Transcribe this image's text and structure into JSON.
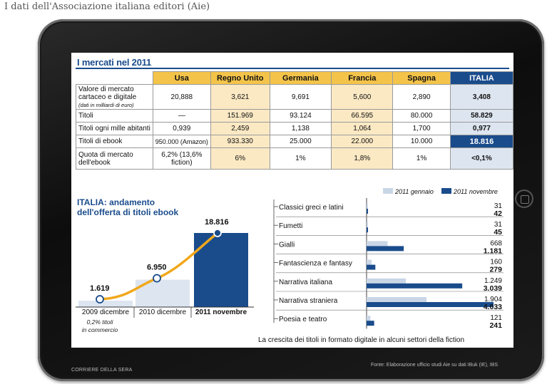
{
  "caption": "I dati dell'Associazione italiana editori (Aie)",
  "footer_left": "CORRIERE DELLA SERA",
  "footer_right": "Fonte: Elaborazione ufficio studi Aie su dati IBuk (IE), IBS",
  "market": {
    "title": "I mercati nel 2011",
    "columns": [
      "Usa",
      "Regno Unito",
      "Germania",
      "Francia",
      "Spagna",
      "ITALIA"
    ],
    "rows": [
      {
        "label": "Valore di mercato cartaceo e digitale",
        "sublabel": "(dati in milliardi di euro)",
        "values": [
          "20,888",
          "3,621",
          "9,691",
          "5,600",
          "2,890",
          "3,408"
        ]
      },
      {
        "label": "Titoli",
        "values": [
          "—",
          "151.969",
          "93.124",
          "66.595",
          "80.000",
          "58.829"
        ]
      },
      {
        "label": "Titoli ogni mille abitanti",
        "values": [
          "0,939",
          "2,459",
          "1,138",
          "1,064",
          "1,700",
          "0,977"
        ]
      },
      {
        "label": "Titoli di ebook",
        "values": [
          "950.000 (Amazon)",
          "933.330",
          "25.000",
          "22.000",
          "10.000",
          "18.816"
        ]
      },
      {
        "label": "Quota di mercato dell'ebook",
        "values": [
          "6,2% (13,6% fiction)",
          "6%",
          "1%",
          "1,8%",
          "1%",
          "<0,1%"
        ]
      }
    ]
  },
  "chart_data": [
    {
      "type": "bar",
      "title": "ITALIA: andamento dell'offerta di titoli ebook",
      "categories": [
        "2009 dicembre",
        "2010 dicembre",
        "2011 novembre"
      ],
      "values": [
        1619,
        6950,
        18816
      ],
      "value_labels": [
        "1.619",
        "6.950",
        "18.816"
      ],
      "note": "0,2% titoli in commercio",
      "colors": [
        "#dde5f0",
        "#dde5f0",
        "#1a4c8c"
      ],
      "curve_color": "#f0a81c"
    },
    {
      "type": "bar",
      "orientation": "horizontal",
      "caption": "La crescita dei titoli in formato digitale in alcuni settori della fiction",
      "categories": [
        "Classici greci e latini",
        "Fumetti",
        "Gialli",
        "Fantascienza e fantasy",
        "Narrativa italiana",
        "Narrativa straniera",
        "Poesia e teatro"
      ],
      "series": [
        {
          "name": "2011 gennaio",
          "color": "#c9d6e6",
          "values": [
            31,
            31,
            668,
            160,
            1249,
            1904,
            121
          ],
          "labels": [
            "31",
            "31",
            "668",
            "160",
            "1.249",
            "1.904",
            "121"
          ]
        },
        {
          "name": "2011 novembre",
          "color": "#1a4c8c",
          "values": [
            42,
            45,
            1181,
            279,
            3039,
            4033,
            241
          ],
          "labels": [
            "42",
            "45",
            "1.181",
            "279",
            "3.039",
            "4.033",
            "241"
          ]
        }
      ]
    }
  ]
}
